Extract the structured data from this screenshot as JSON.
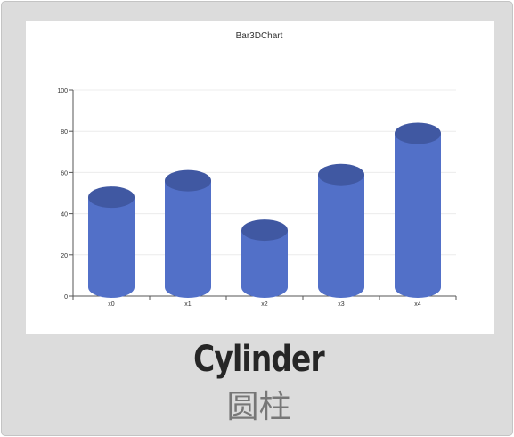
{
  "chart_data": {
    "type": "bar",
    "style": "cylinder",
    "title": "Bar3DChart",
    "categories": [
      "x0",
      "x1",
      "x2",
      "x3",
      "x4"
    ],
    "values": [
      48,
      56,
      32,
      59,
      79
    ],
    "ylim": [
      0,
      100
    ],
    "yticks": [
      0,
      20,
      40,
      60,
      80,
      100
    ],
    "grid": true,
    "colors": {
      "side": "#5270c8",
      "top": "#4058a2"
    }
  },
  "caption": {
    "english": "Cylinder",
    "chinese": "圆柱"
  }
}
